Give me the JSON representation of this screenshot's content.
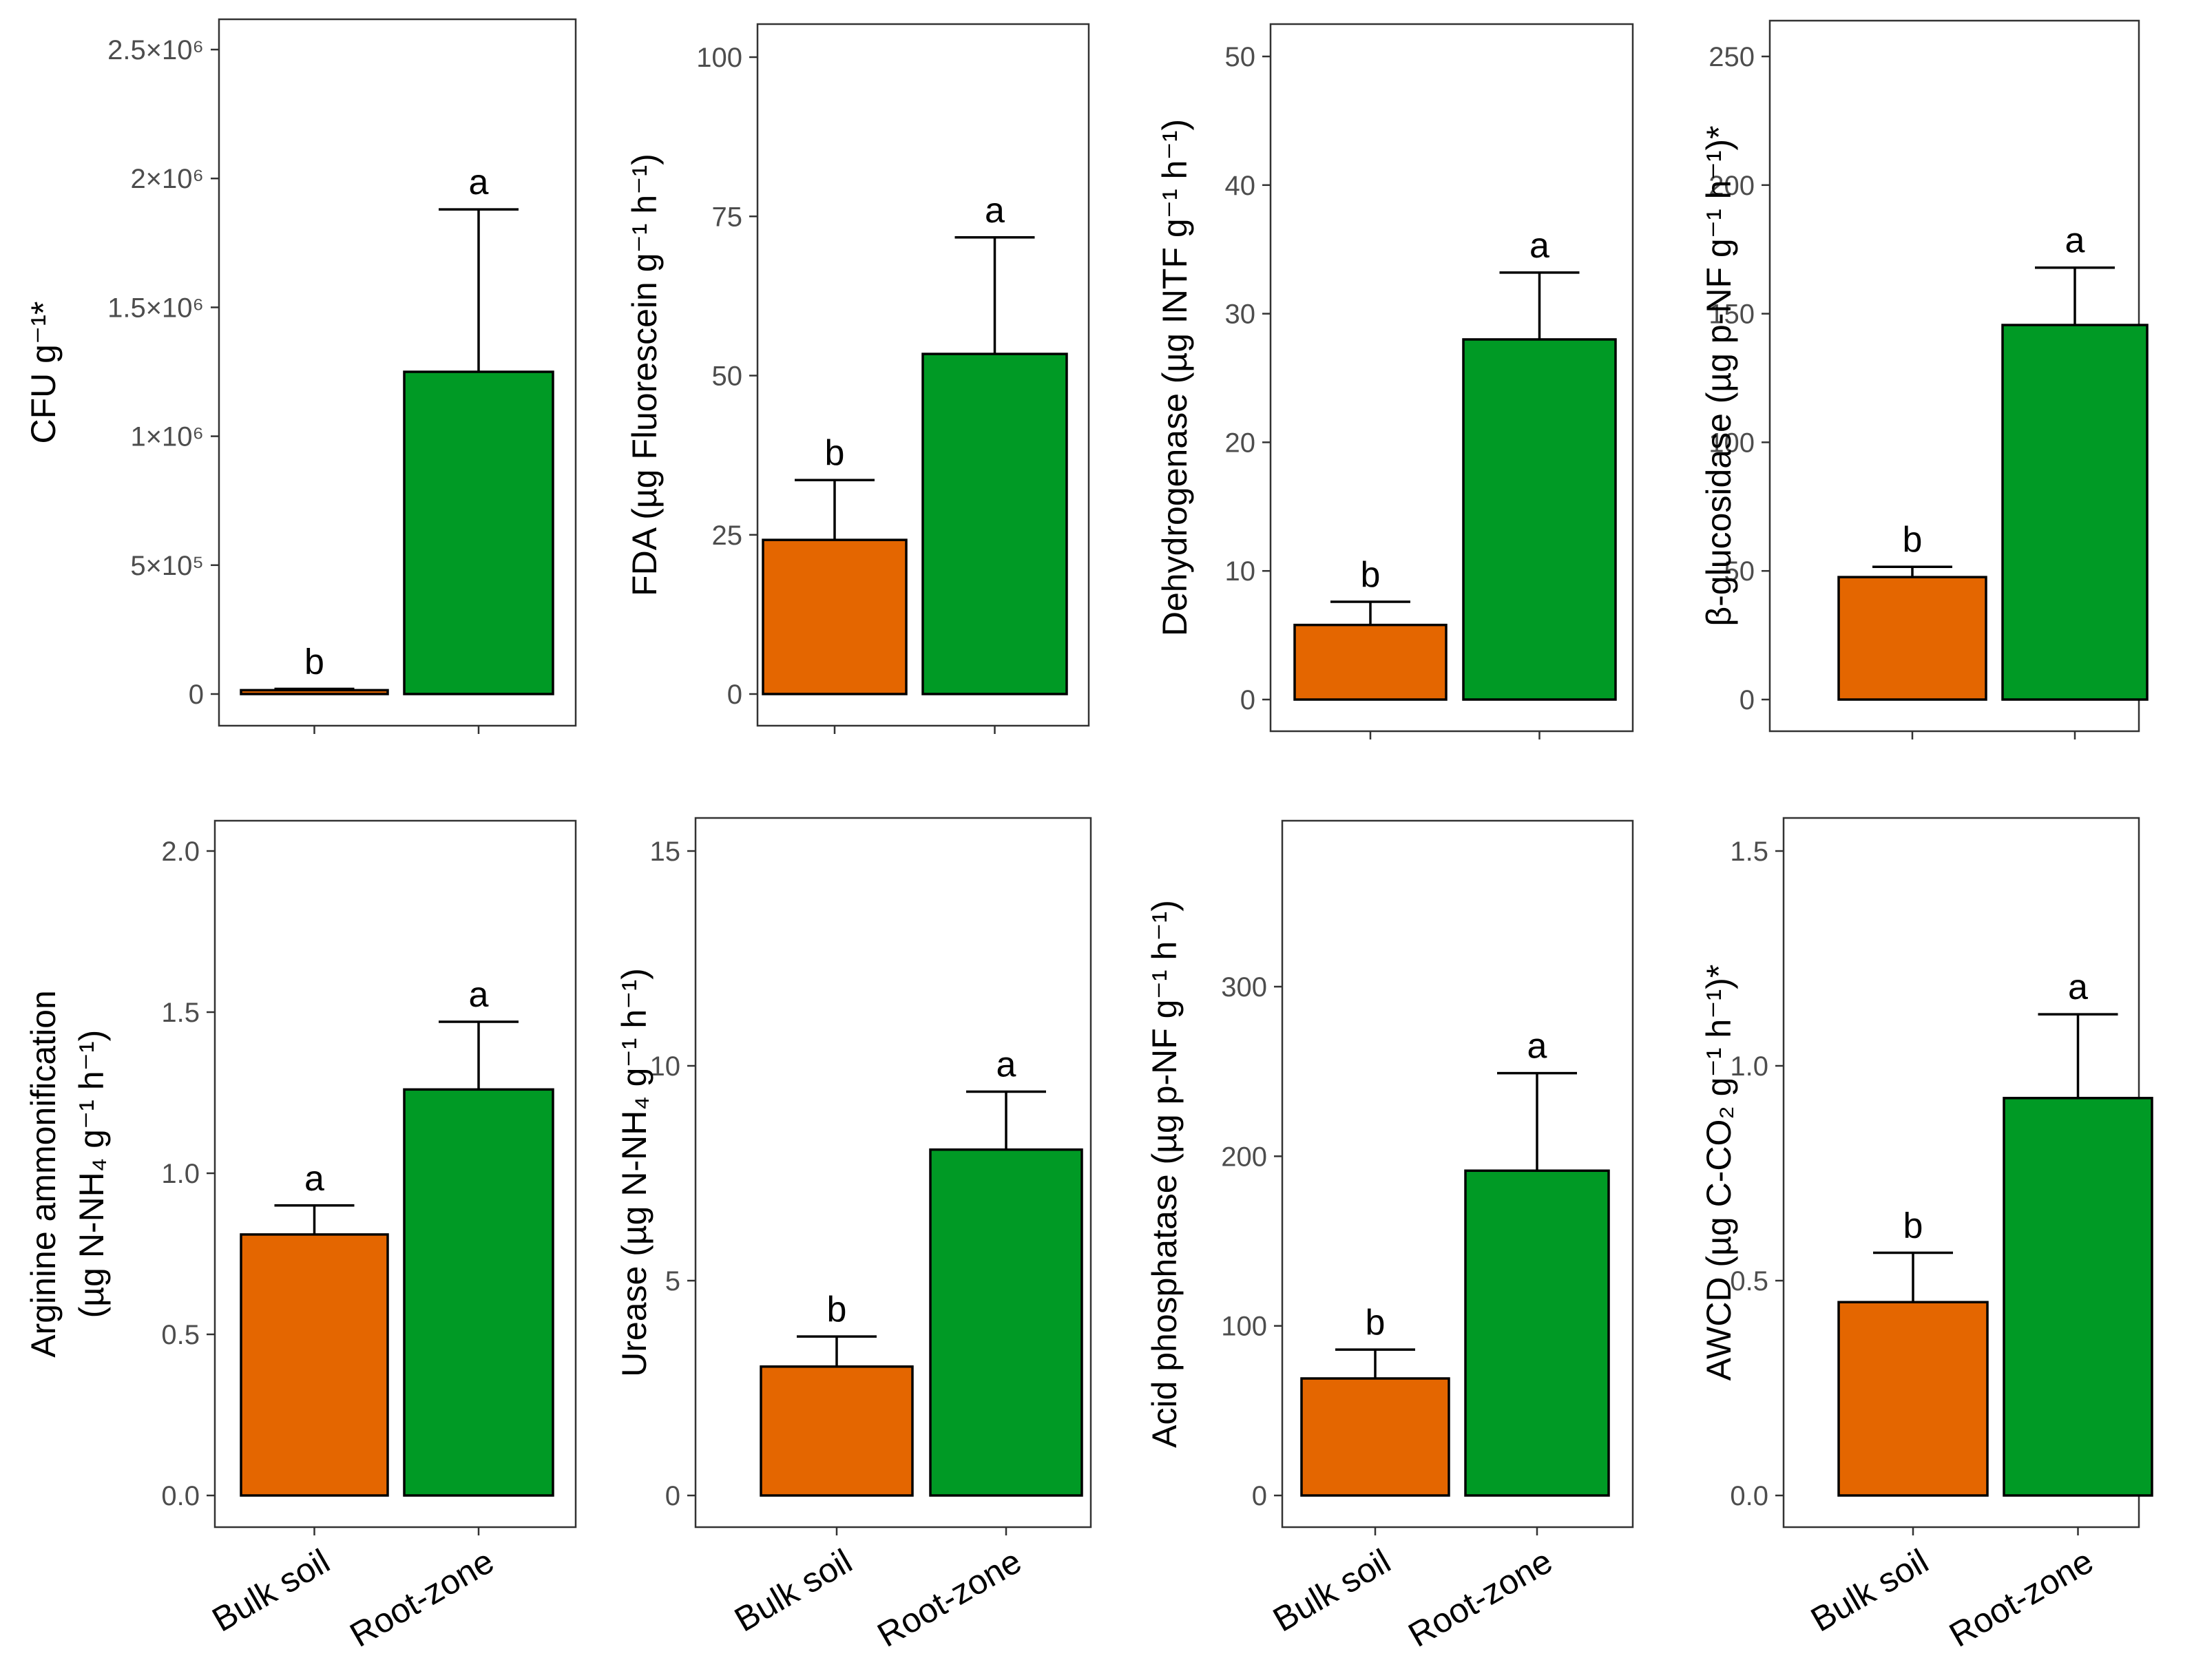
{
  "colors": {
    "bulk": "#e46600",
    "root": "#009a25",
    "frame": "#333333",
    "tick": "#4d4d4d",
    "text": "#000000"
  },
  "chart_data": [
    {
      "type": "bar",
      "ylabel_lines": [
        "CFU g⁻¹*"
      ],
      "ylim": [
        0,
        2500000
      ],
      "yticks": [
        0,
        500000,
        1000000,
        1500000,
        2000000,
        2500000
      ],
      "ytick_labels": [
        "0",
        "5×10⁵",
        "1×10⁶",
        "1.5×10⁶",
        "2×10⁶",
        "2.5×10⁶"
      ],
      "categories": [
        "Bulk soil",
        "Root-zone"
      ],
      "show_category_labels": false,
      "values": [
        15000,
        1250000
      ],
      "error_upper": [
        20000,
        1880000
      ],
      "letters": [
        "b",
        "a"
      ]
    },
    {
      "type": "bar",
      "ylabel_lines": [
        "FDA (µg Fluorescein g⁻¹ h⁻¹)"
      ],
      "ylim": [
        0,
        100
      ],
      "yticks": [
        0,
        25,
        50,
        75,
        100
      ],
      "ytick_labels": [
        "0",
        "25",
        "50",
        "75",
        "100"
      ],
      "categories": [
        "Bulk soil",
        "Root-zone"
      ],
      "show_category_labels": false,
      "values": [
        24.2,
        53.4
      ],
      "error_upper": [
        33.6,
        71.7
      ],
      "letters": [
        "b",
        "a"
      ]
    },
    {
      "type": "bar",
      "ylabel_lines": [
        "Dehydrogenase (µg INTF g⁻¹ h⁻¹)"
      ],
      "ylim": [
        0,
        50
      ],
      "yticks": [
        0,
        10,
        20,
        30,
        40,
        50
      ],
      "ytick_labels": [
        "0",
        "10",
        "20",
        "30",
        "40",
        "50"
      ],
      "categories": [
        "Bulk soil",
        "Root-zone"
      ],
      "show_category_labels": false,
      "values": [
        5.8,
        28.0
      ],
      "error_upper": [
        7.6,
        33.2
      ],
      "letters": [
        "b",
        "a"
      ]
    },
    {
      "type": "bar",
      "ylabel_lines": [
        "β-glucosidase (µg p-NF g⁻¹ h⁻¹)*"
      ],
      "ylim": [
        0,
        250
      ],
      "yticks": [
        0,
        50,
        100,
        150,
        200,
        250
      ],
      "ytick_labels": [
        "0",
        "50",
        "100",
        "150",
        "200",
        "250"
      ],
      "categories": [
        "Bulk soil",
        "Root-zone"
      ],
      "show_category_labels": false,
      "values": [
        47.6,
        145.6
      ],
      "error_upper": [
        51.6,
        167.9
      ],
      "letters": [
        "b",
        "a"
      ]
    },
    {
      "type": "bar",
      "ylabel_lines": [
        "Arginine ammonification",
        "(µg N-NH₄ g⁻¹ h⁻¹)"
      ],
      "ylim": [
        0,
        2.0
      ],
      "yticks": [
        0,
        0.5,
        1.0,
        1.5,
        2.0
      ],
      "ytick_labels": [
        "0.0",
        "0.5",
        "1.0",
        "1.5",
        "2.0"
      ],
      "categories": [
        "Bulk soil",
        "Root-zone"
      ],
      "show_category_labels": true,
      "values": [
        0.81,
        1.26
      ],
      "error_upper": [
        0.9,
        1.47
      ],
      "letters": [
        "a",
        "a"
      ]
    },
    {
      "type": "bar",
      "ylabel_lines": [
        "Urease (µg N-NH₄ g⁻¹ h⁻¹)"
      ],
      "ylim": [
        0,
        15
      ],
      "yticks": [
        0,
        5,
        10,
        15
      ],
      "ytick_labels": [
        "0",
        "5",
        "10",
        "15"
      ],
      "categories": [
        "Bulk soil",
        "Root-zone"
      ],
      "show_category_labels": true,
      "values": [
        3.0,
        8.05
      ],
      "error_upper": [
        3.7,
        9.4
      ],
      "letters": [
        "b",
        "a"
      ]
    },
    {
      "type": "bar",
      "ylabel_lines": [
        "Acid phosphatase (µg p-NF g⁻¹ h⁻¹)"
      ],
      "ylim": [
        0,
        400
      ],
      "yticks": [
        0,
        100,
        200,
        300
      ],
      "ytick_labels": [
        "0",
        "100",
        "200",
        "300"
      ],
      "categories": [
        "Bulk soil",
        "Root-zone"
      ],
      "show_category_labels": true,
      "values": [
        69,
        191.5
      ],
      "error_upper": [
        86,
        249
      ],
      "letters": [
        "b",
        "a"
      ]
    },
    {
      "type": "bar",
      "ylabel_lines": [
        "AWCD (µg C-CO₂ g⁻¹ h⁻¹)*"
      ],
      "ylim": [
        0,
        1.5
      ],
      "yticks": [
        0,
        0.5,
        1.0,
        1.5
      ],
      "ytick_labels": [
        "0.0",
        "0.5",
        "1.0",
        "1.5"
      ],
      "categories": [
        "Bulk soil",
        "Root-zone"
      ],
      "show_category_labels": true,
      "values": [
        0.45,
        0.925
      ],
      "error_upper": [
        0.565,
        1.12
      ],
      "letters": [
        "b",
        "a"
      ]
    }
  ]
}
